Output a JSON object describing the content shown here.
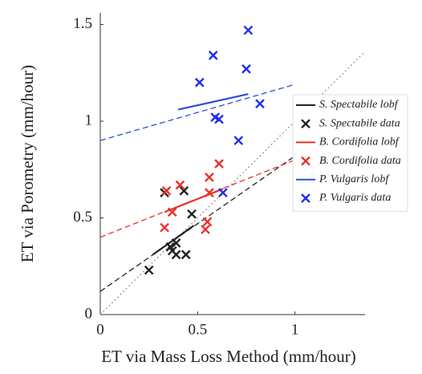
{
  "chart_data": {
    "type": "scatter",
    "x_label": "ET via Mass Loss Method (mm/hour)",
    "y_label": "ET via Porometry (mm/hour)",
    "xlim": [
      0,
      1.36
    ],
    "ylim": [
      0,
      1.56
    ],
    "xticks": [
      0,
      0.5,
      1
    ],
    "yticks": [
      0,
      0.5,
      1,
      1.5
    ],
    "series": [
      {
        "mode": "line",
        "style": "dotted",
        "color": "#999999",
        "x": [
          0,
          1.36
        ],
        "values": [
          0,
          1.36
        ]
      },
      {
        "mode": "line",
        "style": "dashed",
        "color": "#222222",
        "x": [
          0,
          1
        ],
        "values": [
          0.12,
          0.82
        ]
      },
      {
        "mode": "line",
        "style": "dashed",
        "color": "#e8322f",
        "x": [
          0,
          1
        ],
        "values": [
          0.4,
          0.8
        ]
      },
      {
        "mode": "line",
        "style": "dashed",
        "color": "#2b50d9",
        "x": [
          0,
          1
        ],
        "values": [
          0.9,
          1.19
        ]
      },
      {
        "name": "S. Spectabile lobf",
        "mode": "line",
        "style": "solid",
        "color": "#222222",
        "x": [
          0.27,
          0.48
        ],
        "values": [
          0.31,
          0.46
        ]
      },
      {
        "name": "S. Spectabile data",
        "mode": "scatter",
        "color": "#222222",
        "x": [
          0.25,
          0.33,
          0.36,
          0.37,
          0.39,
          0.39,
          0.43,
          0.44,
          0.47
        ],
        "values": [
          0.23,
          0.63,
          0.35,
          0.33,
          0.31,
          0.37,
          0.64,
          0.31,
          0.52
        ]
      },
      {
        "name": "B. Cordifolia lobf",
        "mode": "line",
        "style": "solid",
        "color": "#e8322f",
        "x": [
          0.33,
          0.63
        ],
        "values": [
          0.53,
          0.65
        ]
      },
      {
        "name": "B. Cordifolia data",
        "mode": "scatter",
        "color": "#e8322f",
        "x": [
          0.33,
          0.34,
          0.37,
          0.41,
          0.54,
          0.55,
          0.56,
          0.56,
          0.61
        ],
        "values": [
          0.45,
          0.64,
          0.53,
          0.67,
          0.44,
          0.48,
          0.63,
          0.71,
          0.78
        ]
      },
      {
        "name": "P. Vulgaris lobf",
        "mode": "line",
        "style": "solid",
        "color": "#2b50d9",
        "x": [
          0.4,
          0.76
        ],
        "values": [
          1.06,
          1.14
        ]
      },
      {
        "name": "P. Vulgaris data",
        "mode": "scatter",
        "color": "#1f2ef0",
        "x": [
          0.51,
          0.58,
          0.59,
          0.61,
          0.63,
          0.71,
          0.75,
          0.76,
          0.82
        ],
        "values": [
          1.2,
          1.34,
          1.02,
          1.01,
          0.63,
          0.9,
          1.27,
          1.47,
          1.09
        ]
      }
    ]
  }
}
